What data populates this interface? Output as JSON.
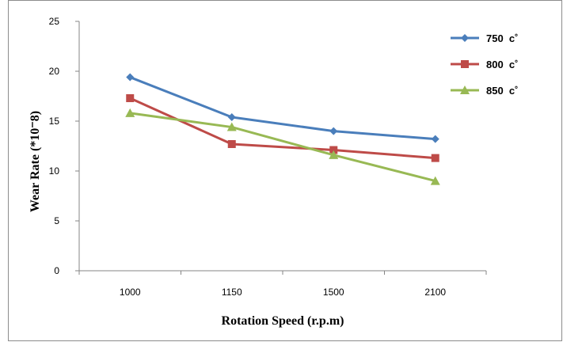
{
  "chart_data": {
    "type": "line",
    "categories": [
      "1000",
      "1150",
      "1500",
      "2100"
    ],
    "xlabel": "Rotation Speed  (r.p.m)",
    "ylabel": "Wear Rate (*10⁻8)",
    "ylim": [
      0,
      25
    ],
    "yticks": [
      0,
      5,
      10,
      15,
      20,
      25
    ],
    "grid": false,
    "legend_position": "top-right",
    "series": [
      {
        "name": "750  c˚",
        "values": [
          19.4,
          15.4,
          14.0,
          13.2
        ],
        "color": "#4a7ebb",
        "marker": "diamond"
      },
      {
        "name": "800  c˚",
        "values": [
          17.3,
          12.7,
          12.1,
          11.3
        ],
        "color": "#be4b48",
        "marker": "square"
      },
      {
        "name": "850  c˚",
        "values": [
          15.8,
          14.4,
          11.6,
          9.0
        ],
        "color": "#98b954",
        "marker": "triangle"
      }
    ]
  }
}
